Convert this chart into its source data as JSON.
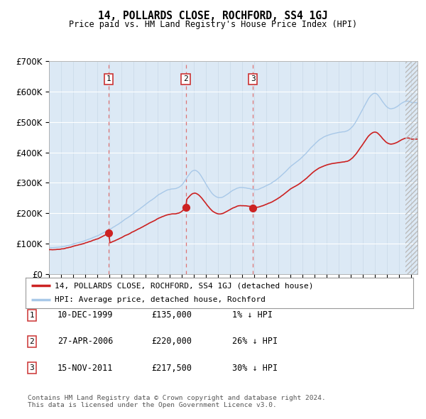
{
  "title": "14, POLLARDS CLOSE, ROCHFORD, SS4 1GJ",
  "subtitle": "Price paid vs. HM Land Registry's House Price Index (HPI)",
  "plot_bg_color": "#dce9f5",
  "hpi_color": "#a8c8e8",
  "price_color": "#cc2222",
  "vline_color": "#dd6666",
  "transactions": [
    {
      "date": 1999.94,
      "price": 135000,
      "label": "1"
    },
    {
      "date": 2006.32,
      "price": 220000,
      "label": "2"
    },
    {
      "date": 2011.88,
      "price": 217500,
      "label": "3"
    }
  ],
  "legend_house_label": "14, POLLARDS CLOSE, ROCHFORD, SS4 1GJ (detached house)",
  "legend_hpi_label": "HPI: Average price, detached house, Rochford",
  "table_rows": [
    {
      "num": "1",
      "date": "10-DEC-1999",
      "price": "£135,000",
      "pct": "1% ↓ HPI"
    },
    {
      "num": "2",
      "date": "27-APR-2006",
      "price": "£220,000",
      "pct": "26% ↓ HPI"
    },
    {
      "num": "3",
      "date": "15-NOV-2011",
      "price": "£217,500",
      "pct": "30% ↓ HPI"
    }
  ],
  "footer": "Contains HM Land Registry data © Crown copyright and database right 2024.\nThis data is licensed under the Open Government Licence v3.0.",
  "ylim": [
    0,
    700000
  ],
  "xlim_start": 1995.0,
  "xlim_end": 2025.5,
  "hpi_anchors_x": [
    1995,
    1996,
    1997,
    1998,
    1999,
    2000,
    2001,
    2002,
    2003,
    2004,
    2005,
    2006,
    2007,
    2008,
    2009,
    2010,
    2011,
    2012,
    2013,
    2014,
    2015,
    2016,
    2017,
    2018,
    2019,
    2020,
    2021,
    2022,
    2023,
    2024,
    2025
  ],
  "hpi_anchors_y": [
    88000,
    92000,
    100000,
    112000,
    128000,
    148000,
    172000,
    200000,
    230000,
    258000,
    278000,
    292000,
    340000,
    295000,
    250000,
    268000,
    285000,
    278000,
    292000,
    318000,
    355000,
    388000,
    428000,
    455000,
    465000,
    480000,
    545000,
    595000,
    550000,
    558000,
    565000
  ]
}
